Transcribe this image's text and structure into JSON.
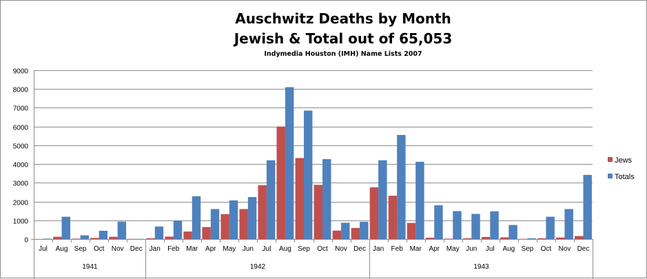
{
  "chart_data": {
    "type": "bar",
    "title": "Auschwitz Deaths by Month",
    "title_line2": "Jewish & Total out of 65,053",
    "subtitle": "Indymedia Houston (IMH) Name Lists 2007",
    "categories": [
      "Jul",
      "Aug",
      "Sep",
      "Oct",
      "Nov",
      "Dec",
      "Jan",
      "Feb",
      "Mar",
      "Apr",
      "May",
      "Jun",
      "Jul",
      "Aug",
      "Sep",
      "Oct",
      "Nov",
      "Dec",
      "Jan",
      "Feb",
      "Mar",
      "Apr",
      "May",
      "Jun",
      "Jul",
      "Aug",
      "Sep",
      "Oct",
      "Nov",
      "Dec"
    ],
    "year_groups": [
      {
        "label": "1941",
        "start": 0,
        "count": 6
      },
      {
        "label": "1942",
        "start": 6,
        "count": 12
      },
      {
        "label": "1943",
        "start": 18,
        "count": 12
      }
    ],
    "series": [
      {
        "name": "Jews",
        "color": "#c0504d",
        "values": [
          5,
          120,
          20,
          60,
          120,
          10,
          40,
          130,
          400,
          640,
          1330,
          1600,
          2870,
          6000,
          4320,
          2890,
          450,
          590,
          2760,
          2310,
          860,
          70,
          20,
          40,
          110,
          90,
          10,
          40,
          80,
          160
        ]
      },
      {
        "name": "Totals",
        "color": "#4f81bd",
        "values": [
          20,
          1190,
          200,
          440,
          930,
          10,
          670,
          990,
          2280,
          1600,
          2060,
          2240,
          4200,
          8100,
          6850,
          4260,
          870,
          920,
          4200,
          5550,
          4120,
          1800,
          1490,
          1340,
          1480,
          750,
          40,
          1190,
          1600,
          3420
        ]
      }
    ],
    "ylim": [
      0,
      9000
    ],
    "yticks": [
      0,
      1000,
      2000,
      3000,
      4000,
      5000,
      6000,
      7000,
      8000,
      9000
    ],
    "grid": true,
    "legend_position": "right"
  }
}
